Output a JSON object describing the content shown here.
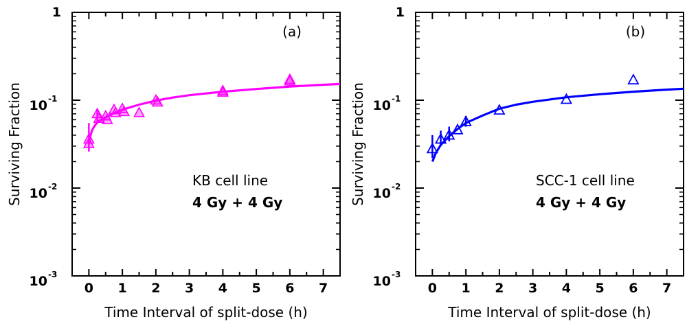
{
  "chart_data": [
    {
      "type": "scatter",
      "panel_label": "(a)",
      "xlabel": "Time Interval of split-dose (h)",
      "ylabel": "Surviving Fraction",
      "x_ticks": [
        "0",
        "1",
        "2",
        "3",
        "4",
        "5",
        "6",
        "7"
      ],
      "xlim": [
        -0.5,
        7.5
      ],
      "ylim": [
        0.001,
        1
      ],
      "y_scale": "log",
      "y_ticks": [
        {
          "value": 1,
          "base": "1",
          "exp": ""
        },
        {
          "value": 0.1,
          "base": "10",
          "exp": "-1"
        },
        {
          "value": 0.01,
          "base": "10",
          "exp": "-2"
        },
        {
          "value": 0.001,
          "base": "10",
          "exp": "-3"
        }
      ],
      "annotations": [
        "KB cell line",
        "4 Gy + 4 Gy"
      ],
      "color": "#ff00ff",
      "marker": "triangle",
      "points": [
        {
          "x": 0.0,
          "y": 0.036
        },
        {
          "x": 0.0,
          "y": 0.032
        },
        {
          "x": 0.25,
          "y": 0.07
        },
        {
          "x": 0.3,
          "y": 0.062
        },
        {
          "x": 0.5,
          "y": 0.066
        },
        {
          "x": 0.55,
          "y": 0.06
        },
        {
          "x": 0.75,
          "y": 0.078
        },
        {
          "x": 0.8,
          "y": 0.072
        },
        {
          "x": 1.0,
          "y": 0.08
        },
        {
          "x": 1.05,
          "y": 0.074
        },
        {
          "x": 1.5,
          "y": 0.072
        },
        {
          "x": 2.0,
          "y": 0.1
        },
        {
          "x": 2.05,
          "y": 0.095
        },
        {
          "x": 4.0,
          "y": 0.128
        },
        {
          "x": 4.0,
          "y": 0.123
        },
        {
          "x": 6.0,
          "y": 0.172
        },
        {
          "x": 6.0,
          "y": 0.165
        }
      ],
      "error_bars": [
        {
          "x": 0.0,
          "low": 0.026,
          "high": 0.055
        },
        {
          "x": 0.25,
          "low": 0.055,
          "high": 0.078
        }
      ],
      "fit_curve": [
        {
          "x": 0.0,
          "y": 0.032
        },
        {
          "x": 0.05,
          "y": 0.04
        },
        {
          "x": 0.1,
          "y": 0.046
        },
        {
          "x": 0.2,
          "y": 0.053
        },
        {
          "x": 0.3,
          "y": 0.058
        },
        {
          "x": 0.5,
          "y": 0.064
        },
        {
          "x": 0.75,
          "y": 0.071
        },
        {
          "x": 1.0,
          "y": 0.078
        },
        {
          "x": 1.5,
          "y": 0.089
        },
        {
          "x": 2.0,
          "y": 0.099
        },
        {
          "x": 2.5,
          "y": 0.107
        },
        {
          "x": 3.0,
          "y": 0.114
        },
        {
          "x": 4.0,
          "y": 0.125
        },
        {
          "x": 5.0,
          "y": 0.134
        },
        {
          "x": 6.0,
          "y": 0.143
        },
        {
          "x": 7.0,
          "y": 0.15
        },
        {
          "x": 7.5,
          "y": 0.153
        }
      ]
    },
    {
      "type": "scatter",
      "panel_label": "(b)",
      "xlabel": "Time Interval of split-dose (h)",
      "ylabel": "Surviving Fraction",
      "x_ticks": [
        "0",
        "1",
        "2",
        "3",
        "4",
        "5",
        "6",
        "7"
      ],
      "xlim": [
        -0.5,
        7.5
      ],
      "ylim": [
        0.001,
        1
      ],
      "y_scale": "log",
      "y_ticks": [
        {
          "value": 1,
          "base": "1",
          "exp": ""
        },
        {
          "value": 0.1,
          "base": "10",
          "exp": "-1"
        },
        {
          "value": 0.01,
          "base": "10",
          "exp": "-2"
        },
        {
          "value": 0.001,
          "base": "10",
          "exp": "-3"
        }
      ],
      "annotations": [
        "SCC-1 cell line",
        "4 Gy + 4 Gy"
      ],
      "color": "#0000ff",
      "marker": "triangle-open",
      "points": [
        {
          "x": 0.0,
          "y": 0.028
        },
        {
          "x": 0.25,
          "y": 0.036
        },
        {
          "x": 0.5,
          "y": 0.04
        },
        {
          "x": 0.75,
          "y": 0.046
        },
        {
          "x": 1.0,
          "y": 0.057
        },
        {
          "x": 2.0,
          "y": 0.077
        },
        {
          "x": 4.0,
          "y": 0.102
        },
        {
          "x": 6.0,
          "y": 0.17
        }
      ],
      "error_bars": [
        {
          "x": 0.0,
          "low": 0.022,
          "high": 0.04
        },
        {
          "x": 0.25,
          "low": 0.03,
          "high": 0.045
        },
        {
          "x": 0.5,
          "low": 0.034,
          "high": 0.05
        },
        {
          "x": 1.0,
          "low": 0.05,
          "high": 0.066
        }
      ],
      "fit_curve": [
        {
          "x": 0.0,
          "y": 0.02
        },
        {
          "x": 0.1,
          "y": 0.025
        },
        {
          "x": 0.25,
          "y": 0.031
        },
        {
          "x": 0.5,
          "y": 0.039
        },
        {
          "x": 0.75,
          "y": 0.047
        },
        {
          "x": 1.0,
          "y": 0.055
        },
        {
          "x": 1.5,
          "y": 0.067
        },
        {
          "x": 2.0,
          "y": 0.08
        },
        {
          "x": 2.5,
          "y": 0.089
        },
        {
          "x": 3.0,
          "y": 0.096
        },
        {
          "x": 4.0,
          "y": 0.108
        },
        {
          "x": 5.0,
          "y": 0.117
        },
        {
          "x": 6.0,
          "y": 0.125
        },
        {
          "x": 7.0,
          "y": 0.132
        },
        {
          "x": 7.5,
          "y": 0.135
        }
      ]
    }
  ]
}
